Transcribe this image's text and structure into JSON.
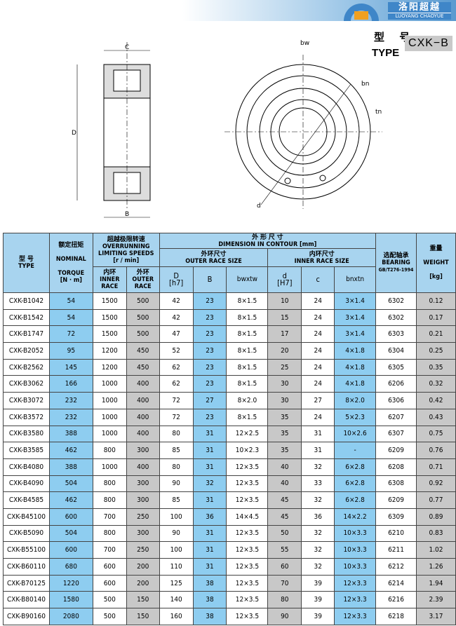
{
  "brand": {
    "name_cn": "洛阳超越",
    "name_en": "LUOYANG CHAOYUE",
    "gear_text": "超越"
  },
  "type_label_cn": "型 号",
  "type_label_en": "TYPE",
  "type_value": "CXK−B",
  "drawing_labels": {
    "c": "C",
    "d_outer": "D",
    "b": "B",
    "bw": "bw",
    "bn": "bn",
    "tn": "tn",
    "d_inner": "d"
  },
  "headers": {
    "type": "型 号\nTYPE",
    "torque": "额定扭矩 NOMINAL TORQUE [N·m]",
    "torque_cn": "额定扭矩",
    "torque_en1": "NOMINAL",
    "torque_en2": "TORQUE",
    "torque_unit": "[N · m]",
    "speed_cn": "超越极限转速",
    "speed_en1": "OVERRUNNING",
    "speed_en2": "LIMITING SPEEDS",
    "speed_unit": "[r / min]",
    "inner_cn": "内环",
    "inner_en": "INNER RACE",
    "outer_cn": "外环",
    "outer_en": "OUTER RACE",
    "dim_cn": "外 形 尺 寸",
    "dim_en": "DIMENSION IN CONTOUR [mm]",
    "outer_size_cn": "外环尺寸",
    "outer_size_en": "OUTER RACE SIZE",
    "inner_size_cn": "内环尺寸",
    "inner_size_en": "INNER RACE SIZE",
    "D": "D",
    "D_tol": "[h7]",
    "B": "B",
    "bwxtw": "bwxtw",
    "d": "d",
    "d_tol": "[H7]",
    "c": "c",
    "bnxtn": "bnxtn",
    "bearing_cn": "选配轴承",
    "bearing_en": "BEARING",
    "bearing_std": "GB/T276-1994",
    "weight_cn": "重量",
    "weight_en": "WEIGHT",
    "weight_unit": "[kg]"
  },
  "rows": [
    [
      "CXK-B1042",
      "54",
      "1500",
      "500",
      "42",
      "23",
      "8×1.5",
      "10",
      "24",
      "3×1.4",
      "6302",
      "0.12"
    ],
    [
      "CXK-B1542",
      "54",
      "1500",
      "500",
      "42",
      "23",
      "8×1.5",
      "15",
      "24",
      "3×1.4",
      "6302",
      "0.17"
    ],
    [
      "CXK-B1747",
      "72",
      "1500",
      "500",
      "47",
      "23",
      "8×1.5",
      "17",
      "24",
      "3×1.4",
      "6303",
      "0.21"
    ],
    [
      "CXK-B2052",
      "95",
      "1200",
      "450",
      "52",
      "23",
      "8×1.5",
      "20",
      "24",
      "4×1.8",
      "6304",
      "0.25"
    ],
    [
      "CXK-B2562",
      "145",
      "1200",
      "450",
      "62",
      "23",
      "8×1.5",
      "25",
      "24",
      "4×1.8",
      "6305",
      "0.35"
    ],
    [
      "CXK-B3062",
      "166",
      "1000",
      "400",
      "62",
      "23",
      "8×1.5",
      "30",
      "24",
      "4×1.8",
      "6206",
      "0.32"
    ],
    [
      "CXK-B3072",
      "232",
      "1000",
      "400",
      "72",
      "27",
      "8×2.0",
      "30",
      "27",
      "8×2.0",
      "6306",
      "0.42"
    ],
    [
      "CXK-B3572",
      "232",
      "1000",
      "400",
      "72",
      "23",
      "8×1.5",
      "35",
      "24",
      "5×2.3",
      "6207",
      "0.43"
    ],
    [
      "CXK-B3580",
      "388",
      "1000",
      "400",
      "80",
      "31",
      "12×2.5",
      "35",
      "31",
      "10×2.6",
      "6307",
      "0.75"
    ],
    [
      "CXK-B3585",
      "462",
      "800",
      "300",
      "85",
      "31",
      "10×2.3",
      "35",
      "31",
      "-",
      "6209",
      "0.76"
    ],
    [
      "CXK-B4080",
      "388",
      "1000",
      "400",
      "80",
      "31",
      "12×3.5",
      "40",
      "32",
      "6×2.8",
      "6208",
      "0.71"
    ],
    [
      "CXK-B4090",
      "504",
      "800",
      "300",
      "90",
      "32",
      "12×3.5",
      "40",
      "33",
      "6×2.8",
      "6308",
      "0.92"
    ],
    [
      "CXK-B4585",
      "462",
      "800",
      "300",
      "85",
      "31",
      "12×3.5",
      "45",
      "32",
      "6×2.8",
      "6209",
      "0.77"
    ],
    [
      "CXK-B45100",
      "600",
      "700",
      "250",
      "100",
      "36",
      "14×4.5",
      "45",
      "36",
      "14×2.2",
      "6309",
      "0.89"
    ],
    [
      "CXK-B5090",
      "504",
      "800",
      "300",
      "90",
      "31",
      "12×3.5",
      "50",
      "32",
      "10×3.3",
      "6210",
      "0.83"
    ],
    [
      "CXK-B55100",
      "600",
      "700",
      "250",
      "100",
      "31",
      "12×3.5",
      "55",
      "32",
      "10×3.3",
      "6211",
      "1.02"
    ],
    [
      "CXK-B60110",
      "680",
      "600",
      "200",
      "110",
      "31",
      "12×3.5",
      "60",
      "32",
      "10×3.3",
      "6212",
      "1.26"
    ],
    [
      "CXK-B70125",
      "1220",
      "600",
      "200",
      "125",
      "38",
      "12×3.5",
      "70",
      "39",
      "12×3.3",
      "6214",
      "1.94"
    ],
    [
      "CXK-B80140",
      "1580",
      "500",
      "150",
      "140",
      "38",
      "12×3.5",
      "80",
      "39",
      "12×3.3",
      "6216",
      "2.39"
    ],
    [
      "CXK-B90160",
      "2080",
      "500",
      "150",
      "160",
      "38",
      "12×3.5",
      "90",
      "39",
      "12×3.3",
      "6218",
      "3.17"
    ]
  ],
  "colors": {
    "header": "#a8d4ef",
    "blue": "#8ecdf0",
    "gray": "#c8c8c8",
    "brand": "#3f86c8"
  }
}
